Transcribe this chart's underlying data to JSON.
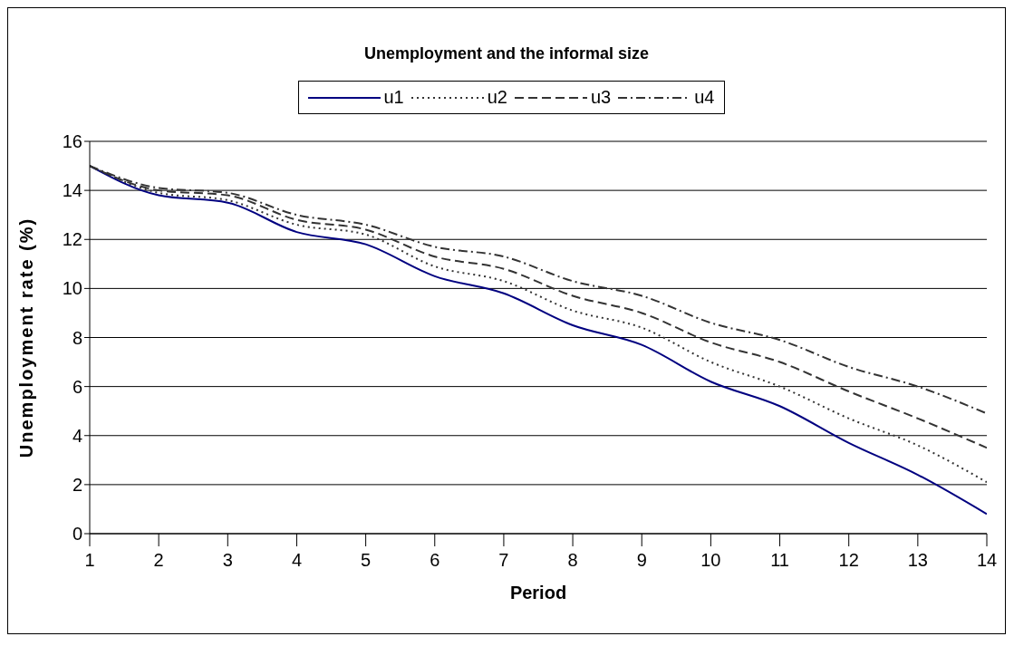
{
  "chart_data": {
    "type": "line",
    "title": "Unemployment and the informal size",
    "xlabel": "Period",
    "ylabel": "Unemployment rate (%)",
    "x": [
      1,
      2,
      3,
      4,
      5,
      6,
      7,
      8,
      9,
      10,
      11,
      12,
      13,
      14
    ],
    "xlim": [
      1,
      14
    ],
    "xticks": [
      1,
      2,
      3,
      4,
      5,
      6,
      7,
      8,
      9,
      10,
      11,
      12,
      13,
      14
    ],
    "ylim": [
      0,
      16
    ],
    "yticks": [
      0,
      2,
      4,
      6,
      8,
      10,
      12,
      14,
      16
    ],
    "grid": "y",
    "legend": "top",
    "marker": "none",
    "series": [
      {
        "name": "u1",
        "color": "#000080",
        "line_style": "solid",
        "values": [
          15,
          13.8,
          13.5,
          12.3,
          11.8,
          10.5,
          9.8,
          8.5,
          7.7,
          6.2,
          5.2,
          3.7,
          2.4,
          0.8
        ]
      },
      {
        "name": "u2",
        "color": "#333333",
        "line_style": "dotted",
        "values": [
          15,
          13.9,
          13.6,
          12.6,
          12.2,
          10.9,
          10.3,
          9.1,
          8.4,
          7.0,
          6.0,
          4.7,
          3.6,
          2.1
        ]
      },
      {
        "name": "u3",
        "color": "#333333",
        "line_style": "dashed",
        "values": [
          15,
          14.0,
          13.8,
          12.8,
          12.4,
          11.3,
          10.8,
          9.7,
          9.0,
          7.8,
          7.0,
          5.8,
          4.7,
          3.5
        ]
      },
      {
        "name": "u4",
        "color": "#333333",
        "line_style": "dashdot",
        "values": [
          15,
          14.1,
          13.9,
          13.0,
          12.6,
          11.7,
          11.3,
          10.3,
          9.7,
          8.6,
          7.9,
          6.8,
          6.0,
          4.9
        ]
      }
    ]
  }
}
